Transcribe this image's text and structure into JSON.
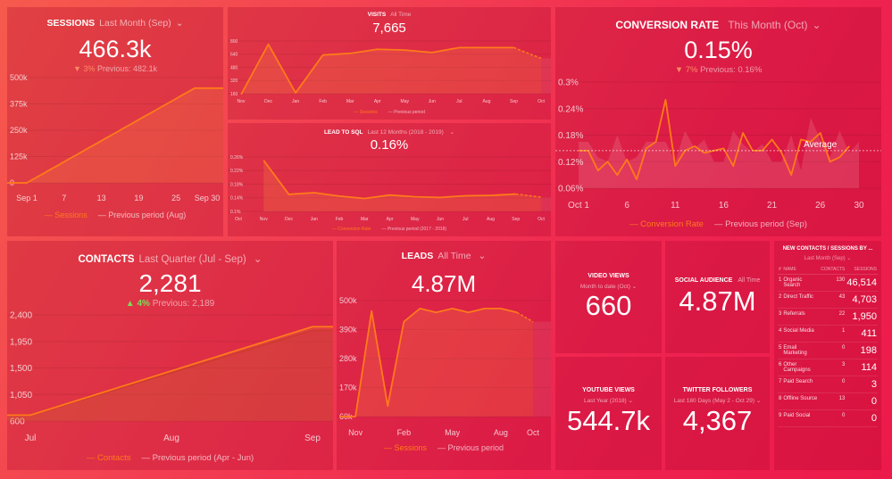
{
  "colors": {
    "line": "#ff7a1a",
    "positive": "#7ddc5a",
    "negative": "#ff8a66",
    "background": "#ef2450"
  },
  "sessions": {
    "title": "SESSIONS",
    "period": "Last Month (Sep)",
    "value": "466.3k",
    "change": "3%",
    "change_direction": "down",
    "previous": "Previous: 482.1k",
    "legend_current": "Sessions",
    "legend_previous": "Previous period (Aug)"
  },
  "visits": {
    "title": "VISITS",
    "period": "All Time",
    "value": "7,665",
    "legend_current": "Sessions",
    "legend_previous": "Previous period"
  },
  "lead_to_sql": {
    "title": "LEAD TO SQL",
    "period": "Last 12 Months (2018 - 2019)",
    "value": "0.16%",
    "legend_current": "Conversion Rate",
    "legend_previous": "Previous period (2017 - 2018)"
  },
  "conversion_rate": {
    "title": "CONVERSION RATE",
    "period": "This Month (Oct)",
    "value": "0.15%",
    "change": "7%",
    "change_direction": "down",
    "previous": "Previous: 0.16%",
    "legend_current": "Conversion Rate",
    "legend_previous": "Previous period (Sep)",
    "average_label": "Average"
  },
  "contacts": {
    "title": "CONTACTS",
    "period": "Last Quarter (Jul - Sep)",
    "value": "2,281",
    "change": "4%",
    "change_direction": "up",
    "previous": "Previous: 2,189",
    "legend_current": "Contacts",
    "legend_previous": "Previous period (Apr - Jun)"
  },
  "leads": {
    "title": "LEADS",
    "period": "All Time",
    "value": "4.87M",
    "legend_current": "Sessions",
    "legend_previous": "Previous period"
  },
  "video_views": {
    "title": "VIDEO VIEWS",
    "period": "Month to date (Oct)",
    "value": "660"
  },
  "social_audience": {
    "title": "SOCIAL AUDIENCE",
    "period": "All Time",
    "value": "4.87M"
  },
  "youtube_views": {
    "title": "YOUTUBE VIEWS",
    "period": "Last Year (2018)",
    "value": "544.7k"
  },
  "twitter_followers": {
    "title": "TWITTER FOLLOWERS",
    "period": "Last 180 Days (May 2 - Oct 29)",
    "value": "4,367"
  },
  "sources_table": {
    "title": "NEW CONTACTS / SESSIONS BY ...",
    "period": "Last Month (Sep)",
    "columns": [
      "#",
      "NAME",
      "CONTACTS",
      "SESSIONS"
    ],
    "rows": [
      {
        "rank": "1",
        "name": "Organic Search",
        "contacts": "130",
        "sessions": "46,514"
      },
      {
        "rank": "2",
        "name": "Direct Traffic",
        "contacts": "43",
        "sessions": "4,703"
      },
      {
        "rank": "3",
        "name": "Referrals",
        "contacts": "22",
        "sessions": "1,950"
      },
      {
        "rank": "4",
        "name": "Social Media",
        "contacts": "1",
        "sessions": "411"
      },
      {
        "rank": "5",
        "name": "Email Marketing",
        "contacts": "0",
        "sessions": "198"
      },
      {
        "rank": "6",
        "name": "Other Campaigns",
        "contacts": "3",
        "sessions": "114"
      },
      {
        "rank": "7",
        "name": "Paid Search",
        "contacts": "0",
        "sessions": "3"
      },
      {
        "rank": "8",
        "name": "Offline Source",
        "contacts": "13",
        "sessions": "0"
      },
      {
        "rank": "9",
        "name": "Paid Social",
        "contacts": "0",
        "sessions": "0"
      }
    ]
  },
  "chart_data": [
    {
      "id": "sessions",
      "type": "area",
      "ylim": [
        0,
        500000
      ],
      "yticks": [
        {
          "v": 0,
          "label": "0"
        },
        {
          "v": 125000,
          "label": "125k"
        },
        {
          "v": 250000,
          "label": "250k"
        },
        {
          "v": 375000,
          "label": "375k"
        },
        {
          "v": 500000,
          "label": "500k"
        }
      ],
      "categories": [
        1,
        2,
        3,
        4,
        5,
        6,
        7,
        8,
        9,
        10,
        11,
        12,
        13,
        14,
        15,
        16,
        17,
        18,
        19,
        20,
        21,
        22,
        23,
        24,
        25,
        26,
        27,
        28,
        29,
        30
      ],
      "tick_labels": [
        "Sep 1",
        "",
        "",
        "",
        "",
        "",
        "7",
        "",
        "",
        "",
        "",
        "",
        "13",
        "",
        "",
        "",
        "",
        "",
        "19",
        "",
        "",
        "",
        "",
        "",
        "25",
        "",
        "",
        "",
        "",
        "Sep 30"
      ],
      "series": [
        {
          "name": "Sessions",
          "values": [
            0,
            17000,
            33000,
            50000,
            67000,
            83000,
            100000,
            117000,
            133000,
            150000,
            167000,
            183000,
            200000,
            217000,
            233000,
            250000,
            267000,
            283000,
            300000,
            317000,
            333000,
            350000,
            367000,
            383000,
            400000,
            417000,
            433000,
            450000,
            450000,
            450000
          ]
        }
      ],
      "extend": true
    },
    {
      "id": "visits",
      "type": "area",
      "ylim": [
        160,
        800
      ],
      "yticks": [
        {
          "v": 160,
          "label": "160"
        },
        {
          "v": 320,
          "label": "320"
        },
        {
          "v": 480,
          "label": "480"
        },
        {
          "v": 640,
          "label": "640"
        },
        {
          "v": 800,
          "label": "800"
        }
      ],
      "categories": [
        "Nov",
        "Dec",
        "Jan",
        "Feb",
        "Mar",
        "Apr",
        "May",
        "Jun",
        "Jul",
        "Aug",
        "Sep",
        "Oct"
      ],
      "tick_labels": [
        "Nov",
        "Dec",
        "Jan",
        "Feb",
        "Mar",
        "Apr",
        "May",
        "Jun",
        "Jul",
        "Aug",
        "Sep",
        "Oct"
      ],
      "series": [
        {
          "name": "Sessions",
          "values": [
            150,
            760,
            170,
            630,
            650,
            700,
            690,
            660,
            720,
            720,
            720,
            590
          ]
        }
      ],
      "dashed_last": true
    },
    {
      "id": "lead_to_sql",
      "type": "area",
      "ylim": [
        0.1,
        0.26
      ],
      "yticks": [
        {
          "v": 0.1,
          "label": "0.1%"
        },
        {
          "v": 0.14,
          "label": "0.14%"
        },
        {
          "v": 0.18,
          "label": "0.18%"
        },
        {
          "v": 0.22,
          "label": "0.22%"
        },
        {
          "v": 0.26,
          "label": "0.26%"
        }
      ],
      "categories": [
        "Oct",
        "Nov",
        "Dec",
        "Jan",
        "Feb",
        "Mar",
        "Apr",
        "May",
        "Jun",
        "Jul",
        "Aug",
        "Sep",
        "Oct"
      ],
      "tick_labels": [
        "Oct",
        "Nov",
        "Dec",
        "Jan",
        "Feb",
        "Mar",
        "Apr",
        "May",
        "Jun",
        "Jul",
        "Aug",
        "Sep",
        "Oct"
      ],
      "series": [
        {
          "name": "Conversion Rate",
          "values": [
            null,
            0.25,
            0.15,
            0.155,
            0.145,
            0.138,
            0.148,
            0.143,
            0.141,
            0.146,
            0.147,
            0.151,
            0.142
          ]
        }
      ],
      "dashed_last": true
    },
    {
      "id": "conversion_rate",
      "type": "line",
      "ylim": [
        0.06,
        0.3
      ],
      "yticks": [
        {
          "v": 0.06,
          "label": "0.06%"
        },
        {
          "v": 0.12,
          "label": "0.12%"
        },
        {
          "v": 0.18,
          "label": "0.18%"
        },
        {
          "v": 0.24,
          "label": "0.24%"
        },
        {
          "v": 0.3,
          "label": "0.3%"
        }
      ],
      "categories": [
        1,
        2,
        3,
        4,
        5,
        6,
        7,
        8,
        9,
        10,
        11,
        12,
        13,
        14,
        15,
        16,
        17,
        18,
        19,
        20,
        21,
        22,
        23,
        24,
        25,
        26,
        27,
        28,
        29,
        30
      ],
      "tick_labels": [
        "Oct 1",
        "",
        "",
        "",
        "",
        "6",
        "",
        "",
        "",
        "",
        "11",
        "",
        "",
        "",
        "",
        "16",
        "",
        "",
        "",
        "",
        "21",
        "",
        "",
        "",
        "",
        "26",
        "",
        "",
        "",
        "30"
      ],
      "series": [
        {
          "name": "Conversion Rate",
          "values": [
            0.145,
            0.145,
            0.1,
            0.12,
            0.09,
            0.125,
            0.08,
            0.15,
            0.165,
            0.26,
            0.11,
            0.145,
            0.155,
            0.14,
            0.145,
            0.15,
            0.11,
            0.185,
            0.145,
            0.145,
            0.17,
            0.14,
            0.09,
            0.17,
            0.165,
            0.185,
            0.12,
            0.13,
            0.155,
            null
          ]
        },
        {
          "name": "Previous period (Sep)",
          "values": [
            0.165,
            0.165,
            0.13,
            0.12,
            0.18,
            0.12,
            0.13,
            0.165,
            0.165,
            0.165,
            0.12,
            0.19,
            0.15,
            0.17,
            0.12,
            0.12,
            0.19,
            0.16,
            0.14,
            0.16,
            0.12,
            0.12,
            0.18,
            0.1,
            0.22,
            0.17,
            0.13,
            0.19,
            0.14,
            0.165
          ]
        }
      ],
      "average": 0.145
    },
    {
      "id": "contacts",
      "type": "area",
      "ylim": [
        600,
        2400
      ],
      "yticks": [
        {
          "v": 600,
          "label": "600"
        },
        {
          "v": 1050,
          "label": "1,050"
        },
        {
          "v": 1500,
          "label": "1,500"
        },
        {
          "v": 1950,
          "label": "1,950"
        },
        {
          "v": 2400,
          "label": "2,400"
        }
      ],
      "categories": [
        "Jul",
        "Aug",
        "Sep"
      ],
      "tick_labels": [
        "Jul",
        "Aug",
        "Sep"
      ],
      "series": [
        {
          "name": "Contacts",
          "values": [
            700,
            1450,
            2200
          ]
        },
        {
          "name": "Previous period (Apr - Jun)",
          "values": [
            700,
            1420,
            2140
          ]
        }
      ],
      "extend": true
    },
    {
      "id": "leads",
      "type": "area",
      "ylim": [
        60000,
        500000
      ],
      "yticks": [
        {
          "v": 60000,
          "label": "60k"
        },
        {
          "v": 170000,
          "label": "170k"
        },
        {
          "v": 280000,
          "label": "280k"
        },
        {
          "v": 390000,
          "label": "390k"
        },
        {
          "v": 500000,
          "label": "500k"
        }
      ],
      "categories": [
        "Oct",
        "Nov",
        "Dec",
        "Jan",
        "Feb",
        "Mar",
        "Apr",
        "May",
        "Jun",
        "Jul",
        "Aug",
        "Sep",
        "Oct"
      ],
      "tick_labels": [
        "",
        "Nov",
        "",
        "",
        "Feb",
        "",
        "",
        "May",
        "",
        "",
        "Aug",
        "",
        "Oct"
      ],
      "series": [
        {
          "name": "Sessions",
          "values": [
            60000,
            60000,
            460000,
            100000,
            420000,
            470000,
            455000,
            470000,
            455000,
            470000,
            470000,
            455000,
            420000
          ]
        }
      ],
      "dashed_last": true
    }
  ]
}
